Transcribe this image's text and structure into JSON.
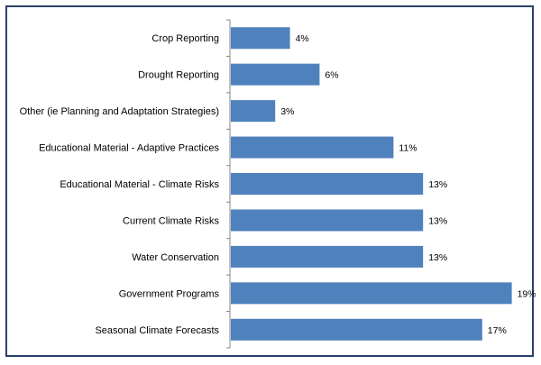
{
  "chart_data": {
    "type": "bar",
    "orientation": "horizontal",
    "categories": [
      "Crop Reporting",
      "Drought Reporting",
      "Other (ie Planning and Adaptation Strategies)",
      "Educational Material - Adaptive Practices",
      "Educational Material - Climate Risks",
      "Current Climate Risks",
      "Water Conservation",
      "Government Programs",
      "Seasonal Climate Forecasts"
    ],
    "values": [
      4,
      6,
      3,
      11,
      13,
      13,
      13,
      19,
      17
    ],
    "value_labels": [
      "4%",
      "6%",
      "3%",
      "11%",
      "13%",
      "13%",
      "13%",
      "19%",
      "17%"
    ],
    "unit": "%",
    "xlim": [
      0,
      19
    ],
    "grid": false,
    "legend": "none",
    "bar_color": "#4f81bd",
    "title": "",
    "xlabel": "",
    "ylabel": ""
  }
}
